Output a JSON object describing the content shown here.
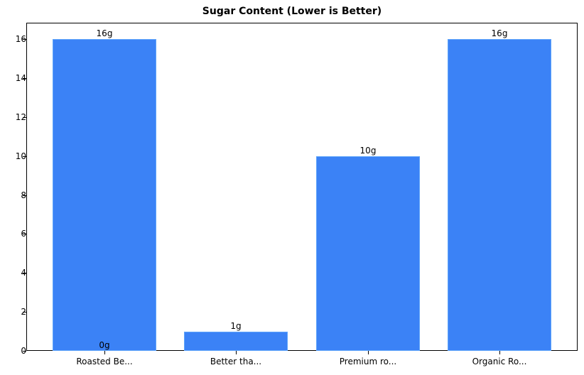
{
  "chart_data": {
    "type": "bar",
    "title": "Sugar Content (Lower is Better)",
    "xlabel": "",
    "ylabel": "",
    "categories": [
      "Roasted Be...",
      "Better tha...",
      "Premium ro...",
      "Organic Ro..."
    ],
    "values": [
      16,
      1,
      10,
      16
    ],
    "data_labels": [
      "16g",
      "1g",
      "10g",
      "16g"
    ],
    "extra_annotations": [
      {
        "text": "0g",
        "category": "Roasted Be...",
        "y": 0
      }
    ],
    "ylim": [
      0,
      16.8
    ],
    "yticks": [
      0,
      2,
      4,
      6,
      8,
      10,
      12,
      14,
      16
    ],
    "grid": false,
    "legend": null,
    "bar_color": "#3b82f6",
    "bar_edge_color": "#60a5fa"
  }
}
